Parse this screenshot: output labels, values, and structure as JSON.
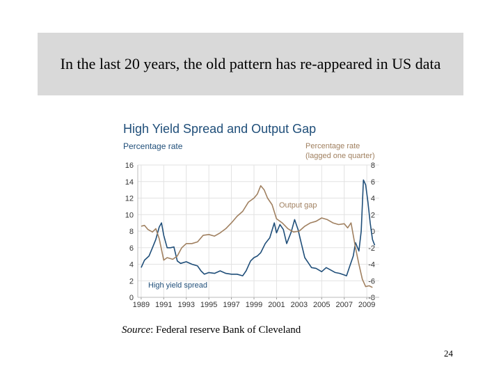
{
  "slide": {
    "heading": "In the last 20 years, the old pattern has re-appeared in US data",
    "source_label": "Source",
    "source_text": ": Federal reserve Bank of Cleveland",
    "page_number": "24"
  },
  "chart_data": {
    "type": "line",
    "title": "High Yield Spread and Output Gap",
    "ylabel_left": "Percentage rate",
    "ylabel_right": "Percentage rate\n(lagged one quarter)",
    "xlim": [
      1988.7,
      2010.1
    ],
    "ylim_left": [
      0,
      16
    ],
    "ylim_right": [
      -8,
      8
    ],
    "x_ticks": [
      1989,
      1991,
      1993,
      1995,
      1997,
      1999,
      2001,
      2003,
      2005,
      2007,
      2009
    ],
    "y_ticks_left": [
      0,
      2,
      4,
      6,
      8,
      10,
      12,
      14,
      16
    ],
    "y_ticks_right": [
      -8,
      -6,
      -4,
      -2,
      0,
      2,
      4,
      6,
      8
    ],
    "grid": true,
    "colors": {
      "title": "#1f4e79",
      "axis_label_left": "#1f4e79",
      "axis_label_right": "#a08060",
      "high_yield": "#1f4e79",
      "output_gap": "#a08060",
      "grid": "#e2e2e2",
      "tick_label": "#333333"
    },
    "series": [
      {
        "name": "High yield spread",
        "axis": "left",
        "points": [
          [
            1989.0,
            3.6
          ],
          [
            1989.3,
            4.5
          ],
          [
            1989.7,
            5.0
          ],
          [
            1990.0,
            6.0
          ],
          [
            1990.3,
            7.0
          ],
          [
            1990.6,
            8.5
          ],
          [
            1990.8,
            9.0
          ],
          [
            1991.0,
            7.5
          ],
          [
            1991.3,
            6.0
          ],
          [
            1991.6,
            6.0
          ],
          [
            1991.9,
            6.1
          ],
          [
            1992.2,
            4.4
          ],
          [
            1992.5,
            4.1
          ],
          [
            1993.0,
            4.3
          ],
          [
            1993.5,
            4.0
          ],
          [
            1994.0,
            3.8
          ],
          [
            1994.3,
            3.2
          ],
          [
            1994.6,
            2.8
          ],
          [
            1995.0,
            3.0
          ],
          [
            1995.5,
            2.9
          ],
          [
            1996.0,
            3.2
          ],
          [
            1996.5,
            2.9
          ],
          [
            1997.0,
            2.8
          ],
          [
            1997.5,
            2.8
          ],
          [
            1998.0,
            2.6
          ],
          [
            1998.3,
            3.2
          ],
          [
            1998.7,
            4.4
          ],
          [
            1999.0,
            4.8
          ],
          [
            1999.3,
            5.0
          ],
          [
            1999.6,
            5.4
          ],
          [
            2000.0,
            6.5
          ],
          [
            2000.4,
            7.2
          ],
          [
            2000.8,
            9.0
          ],
          [
            2001.0,
            7.8
          ],
          [
            2001.3,
            8.8
          ],
          [
            2001.6,
            8.2
          ],
          [
            2001.9,
            6.5
          ],
          [
            2002.3,
            7.9
          ],
          [
            2002.6,
            9.4
          ],
          [
            2002.9,
            8.2
          ],
          [
            2003.2,
            6.5
          ],
          [
            2003.5,
            4.8
          ],
          [
            2003.8,
            4.2
          ],
          [
            2004.1,
            3.6
          ],
          [
            2004.5,
            3.5
          ],
          [
            2005.0,
            3.1
          ],
          [
            2005.4,
            3.6
          ],
          [
            2005.8,
            3.3
          ],
          [
            2006.2,
            3.0
          ],
          [
            2006.6,
            2.9
          ],
          [
            2007.0,
            2.7
          ],
          [
            2007.2,
            2.6
          ],
          [
            2007.5,
            3.8
          ],
          [
            2007.8,
            5.0
          ],
          [
            2008.0,
            6.6
          ],
          [
            2008.3,
            5.6
          ],
          [
            2008.5,
            8.0
          ],
          [
            2008.7,
            14.2
          ],
          [
            2008.9,
            13.6
          ],
          [
            2009.1,
            11.5
          ],
          [
            2009.3,
            9.0
          ],
          [
            2009.5,
            7.0
          ],
          [
            2009.7,
            6.3
          ]
        ]
      },
      {
        "name": "Output gap",
        "axis": "right",
        "points": [
          [
            1989.0,
            0.6
          ],
          [
            1989.3,
            0.7
          ],
          [
            1989.6,
            0.2
          ],
          [
            1990.0,
            -0.1
          ],
          [
            1990.3,
            0.3
          ],
          [
            1990.6,
            -0.9
          ],
          [
            1991.0,
            -3.5
          ],
          [
            1991.3,
            -3.2
          ],
          [
            1991.8,
            -3.4
          ],
          [
            1992.2,
            -3.0
          ],
          [
            1992.6,
            -2.0
          ],
          [
            1993.0,
            -1.5
          ],
          [
            1993.5,
            -1.5
          ],
          [
            1994.0,
            -1.3
          ],
          [
            1994.5,
            -0.5
          ],
          [
            1995.0,
            -0.4
          ],
          [
            1995.5,
            -0.6
          ],
          [
            1996.0,
            -0.2
          ],
          [
            1996.5,
            0.3
          ],
          [
            1997.0,
            1.0
          ],
          [
            1997.5,
            1.8
          ],
          [
            1998.0,
            2.4
          ],
          [
            1998.5,
            3.5
          ],
          [
            1999.0,
            4.0
          ],
          [
            1999.3,
            4.5
          ],
          [
            1999.6,
            5.5
          ],
          [
            1999.9,
            5.0
          ],
          [
            2000.2,
            4.0
          ],
          [
            2000.6,
            3.2
          ],
          [
            2001.0,
            1.5
          ],
          [
            2001.5,
            1.0
          ],
          [
            2002.0,
            0.3
          ],
          [
            2002.5,
            -0.1
          ],
          [
            2003.0,
            0.0
          ],
          [
            2003.5,
            0.6
          ],
          [
            2004.0,
            1.0
          ],
          [
            2004.5,
            1.2
          ],
          [
            2005.0,
            1.6
          ],
          [
            2005.5,
            1.4
          ],
          [
            2006.0,
            1.0
          ],
          [
            2006.5,
            0.8
          ],
          [
            2007.0,
            0.9
          ],
          [
            2007.3,
            0.4
          ],
          [
            2007.6,
            1.0
          ],
          [
            2008.0,
            -2.0
          ],
          [
            2008.3,
            -4.0
          ],
          [
            2008.6,
            -5.8
          ],
          [
            2008.9,
            -6.7
          ],
          [
            2009.2,
            -6.6
          ],
          [
            2009.5,
            -6.8
          ]
        ]
      }
    ]
  }
}
